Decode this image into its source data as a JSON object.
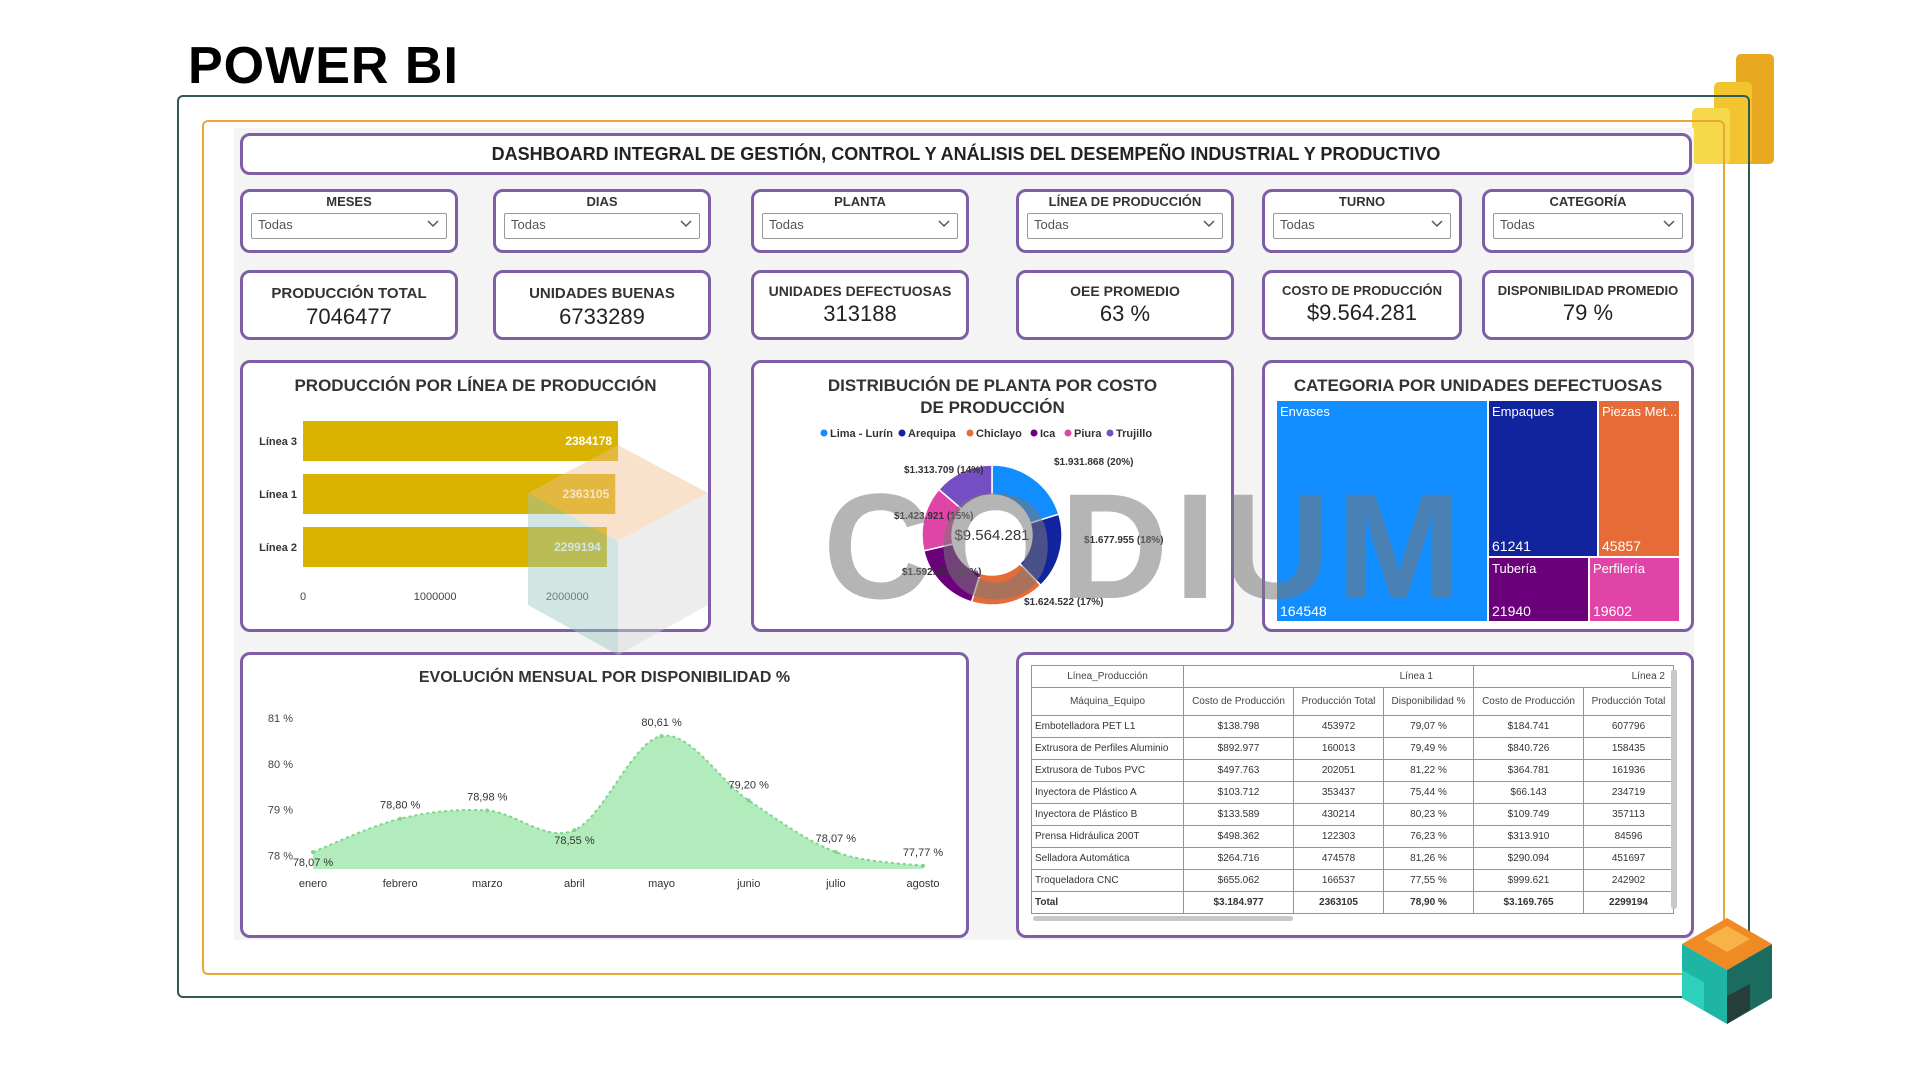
{
  "brand": {
    "title": "POWER BI",
    "watermark": "CODIUM"
  },
  "dashboard": {
    "title": "DASHBOARD INTEGRAL DE GESTIÓN, CONTROL Y ANÁLISIS DEL DESEMPEÑO INDUSTRIAL Y PRODUCTIVO"
  },
  "filters": [
    {
      "label": "MESES",
      "value": "Todas"
    },
    {
      "label": "DIAS",
      "value": "Todas"
    },
    {
      "label": "PLANTA",
      "value": "Todas"
    },
    {
      "label": "LÍNEA DE PRODUCCIÓN",
      "value": "Todas"
    },
    {
      "label": "TURNO",
      "value": "Todas"
    },
    {
      "label": "CATEGORÍA",
      "value": "Todas"
    }
  ],
  "kpis": [
    {
      "label": "PRODUCCIÓN TOTAL",
      "value": "7046477"
    },
    {
      "label": "UNIDADES BUENAS",
      "value": "6733289"
    },
    {
      "label": "UNIDADES DEFECTUOSAS",
      "value": "313188"
    },
    {
      "label": "OEE PROMEDIO",
      "value": "63 %"
    },
    {
      "label": "COSTO DE PRODUCCIÓN",
      "value": "$9.564.281"
    },
    {
      "label": "DISPONIBILIDAD PROMEDIO",
      "value": "79 %"
    }
  ],
  "bar_chart": {
    "title": "PRODUCCIÓN POR LÍNEA DE PRODUCCIÓN",
    "color": "#d9b300",
    "categories": [
      "Línea 3",
      "Línea 1",
      "Línea 2"
    ],
    "values": [
      2384178,
      2363105,
      2299194
    ],
    "value_labels": [
      "2384178",
      "2363105",
      "2299194"
    ],
    "ticks": [
      "0",
      "1000000",
      "2000000"
    ],
    "xlim": [
      0,
      2800000
    ]
  },
  "donut_chart": {
    "title": "DISTRIBUCIÓN DE PLANTA POR COSTO DE PRODUCCIÓN",
    "center_label": "$9.564.281",
    "slices": [
      {
        "name": "Lima - Lurín",
        "value": 1931868,
        "label": "$1.931.868 (20%)",
        "color": "#118dff"
      },
      {
        "name": "Arequipa",
        "value": 1677955,
        "label": "$1.677.955 (18%)",
        "color": "#12239e"
      },
      {
        "name": "Chiclayo",
        "value": 1624522,
        "label": "$1.624.522 (17%)",
        "color": "#e66c37"
      },
      {
        "name": "Ica",
        "value": 1592305,
        "label": "$1.592.305 (17%)",
        "color": "#6b007b"
      },
      {
        "name": "Piura",
        "value": 1423921,
        "label": "$1.423.921 (15%)",
        "color": "#e044a7"
      },
      {
        "name": "Trujillo",
        "value": 1313709,
        "label": "$1.313.709 (14%)",
        "color": "#744ec2"
      }
    ]
  },
  "treemap": {
    "title": "CATEGORIA POR UNIDADES DEFECTUOSAS",
    "items": [
      {
        "name": "Envases",
        "value": "164548",
        "color": "#118dff"
      },
      {
        "name": "Empaques",
        "value": "61241",
        "color": "#12239e"
      },
      {
        "name": "Piezas Met...",
        "value": "45857",
        "color": "#e66c37"
      },
      {
        "name": "Tubería",
        "value": "21940",
        "color": "#6b007b"
      },
      {
        "name": "Perfilería",
        "value": "19602",
        "color": "#e044a7"
      }
    ]
  },
  "line_chart": {
    "title": "EVOLUCIÓN MENSUAL POR DISPONIBILIDAD %",
    "color": "#7ee08f",
    "categories": [
      "enero",
      "febrero",
      "marzo",
      "abril",
      "mayo",
      "junio",
      "julio",
      "agosto"
    ],
    "values": [
      78.07,
      78.8,
      78.98,
      78.55,
      80.61,
      79.2,
      78.07,
      77.77
    ],
    "value_labels": [
      "78,07 %",
      "78,80 %",
      "78,98 %",
      "78,55 %",
      "80,61 %",
      "79,20 %",
      "78,07 %",
      "77,77 %"
    ],
    "y_ticks": [
      "81 %",
      "80 %",
      "79 %",
      "78 %"
    ],
    "y_tick_values": [
      81,
      80,
      79,
      78
    ],
    "ylim": [
      77.7,
      81.2
    ]
  },
  "matrix": {
    "header_row": [
      "Línea_Producción",
      "Línea 1",
      "Línea 2"
    ],
    "columns": [
      "Máquina_Equipo",
      "Costo de Producción",
      "Producción Total",
      "Disponibilidad %",
      "Costo de Producción",
      "Producción Total"
    ],
    "rows": [
      [
        "Embotelladora PET L1",
        "$138.798",
        "453972",
        "79,07 %",
        "$184.741",
        "607796"
      ],
      [
        "Extrusora de Perfiles Aluminio",
        "$892.977",
        "160013",
        "79,49 %",
        "$840.726",
        "158435"
      ],
      [
        "Extrusora de Tubos PVC",
        "$497.763",
        "202051",
        "81,22 %",
        "$364.781",
        "161936"
      ],
      [
        "Inyectora de Plástico A",
        "$103.712",
        "353437",
        "75,44 %",
        "$66.143",
        "234719"
      ],
      [
        "Inyectora de Plástico B",
        "$133.589",
        "430214",
        "80,23 %",
        "$109.749",
        "357113"
      ],
      [
        "Prensa Hidráulica 200T",
        "$498.362",
        "122303",
        "76,23 %",
        "$313.910",
        "84596"
      ],
      [
        "Selladora Automática",
        "$264.716",
        "474578",
        "81,26 %",
        "$290.094",
        "451697"
      ],
      [
        "Troqueladora CNC",
        "$655.062",
        "166537",
        "77,55 %",
        "$999.621",
        "242902"
      ]
    ],
    "total": [
      "Total",
      "$3.184.977",
      "2363105",
      "78,90 %",
      "$3.169.765",
      "2299194"
    ]
  }
}
